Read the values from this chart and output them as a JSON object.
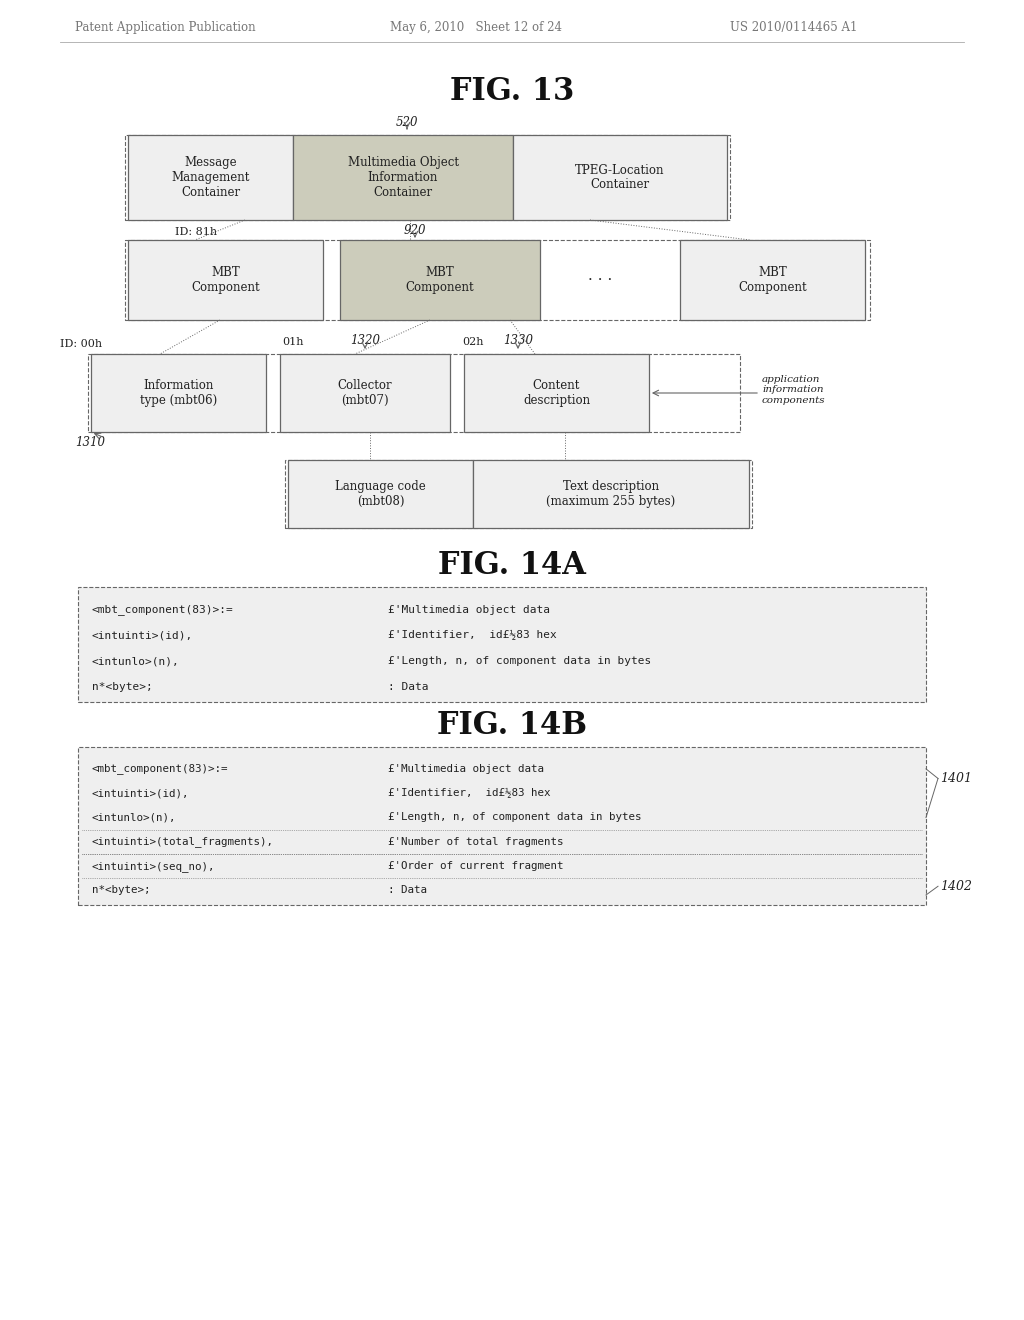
{
  "header_left": "Patent Application Publication",
  "header_mid": "May 6, 2010   Sheet 12 of 24",
  "header_right": "US 2010/0114465 A1",
  "fig13_title": "FIG. 13",
  "fig14a_title": "FIG. 14A",
  "fig14b_title": "FIG. 14B",
  "bg_color": "#ffffff",
  "box_fill": "#efefef",
  "shaded_fill": "#ccccbb",
  "border_color": "#666666",
  "text_color": "#222222",
  "header_color": "#777777",
  "label_color": "#555555"
}
